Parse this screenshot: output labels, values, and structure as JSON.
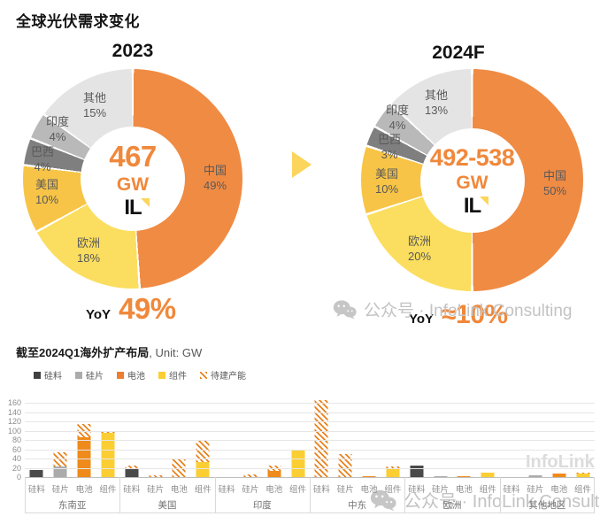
{
  "page_title": "全球光伏需求变化",
  "watermarks": {
    "mid": "公众号 · InfoLink Consulting",
    "bottom": "公众号 · InfoLink Consulting",
    "infolink": "InfoLink"
  },
  "logo_text": "IL",
  "donut_colors": [
    "#F08B44",
    "#FBDE5F",
    "#F7C447",
    "#7F7F7F",
    "#B9B9B9",
    "#E4E4E4"
  ],
  "donuts": [
    {
      "title": "2023",
      "center_value": "467",
      "center_unit": "GW",
      "yoy_label": "YoY",
      "yoy_value": "49%"
    },
    {
      "title": "2024F",
      "center_value": "492-538",
      "center_unit": "GW",
      "yoy_label": "YoY",
      "yoy_value": "≈10%"
    }
  ],
  "bar_section": {
    "title_bold": "截至2024Q1海外扩产布局",
    "title_rest": ", Unit: GW",
    "legend": [
      {
        "label": "硅料",
        "color": "#404040",
        "hatch": false
      },
      {
        "label": "硅片",
        "color": "#ABABAB",
        "hatch": false
      },
      {
        "label": "电池",
        "color": "#ED7D31",
        "hatch": false
      },
      {
        "label": "组件",
        "color": "#FBCE33",
        "hatch": false
      },
      {
        "label": "待建产能",
        "color": "#E8821E",
        "hatch": true
      }
    ],
    "category_colors": {
      "硅料": "#4A4A4A",
      "硅片": "#ABABAB",
      "电池": "#EE8B1B",
      "组件": "#FBCE33"
    }
  },
  "chart_data": [
    {
      "type": "pie",
      "title": "2023",
      "labels": [
        "中国",
        "欧洲",
        "美国",
        "巴西",
        "印度",
        "其他"
      ],
      "values": [
        49,
        18,
        10,
        4,
        4,
        15
      ],
      "unit": "%",
      "center_text": "467 GW",
      "annotation": "YoY 49%",
      "start_angle": "top",
      "direction": "clockwise"
    },
    {
      "type": "pie",
      "title": "2024F",
      "labels": [
        "中国",
        "欧洲",
        "美国",
        "巴西",
        "印度",
        "其他"
      ],
      "values": [
        50,
        20,
        10,
        3,
        4,
        13
      ],
      "unit": "%",
      "center_text": "492-538 GW",
      "annotation": "YoY ≈10%",
      "start_angle": "top",
      "direction": "clockwise"
    },
    {
      "type": "bar",
      "title": "截至2024Q1海外扩产布局, Unit: GW",
      "ylabel": "GW",
      "ylim": [
        0,
        160
      ],
      "ytick_step": 20,
      "stack_note": "each bar = existing (solid, category color) + planned 待建产能 (orange hatch) on top",
      "groups": [
        {
          "name": "东南亚",
          "bars": [
            {
              "cat": "硅料",
              "existing": 15,
              "planned": 0
            },
            {
              "cat": "硅片",
              "existing": 23,
              "planned": 30
            },
            {
              "cat": "电池",
              "existing": 85,
              "planned": 30
            },
            {
              "cat": "组件",
              "existing": 95,
              "planned": 3
            }
          ]
        },
        {
          "name": "美国",
          "bars": [
            {
              "cat": "硅料",
              "existing": 18,
              "planned": 7
            },
            {
              "cat": "硅片",
              "existing": 0,
              "planned": 3
            },
            {
              "cat": "电池",
              "existing": 0,
              "planned": 40
            },
            {
              "cat": "组件",
              "existing": 33,
              "planned": 45
            }
          ]
        },
        {
          "name": "印度",
          "bars": [
            {
              "cat": "硅料",
              "existing": 0,
              "planned": 0
            },
            {
              "cat": "硅片",
              "existing": 0,
              "planned": 5
            },
            {
              "cat": "电池",
              "existing": 13,
              "planned": 12
            },
            {
              "cat": "组件",
              "existing": 60,
              "planned": 0
            }
          ]
        },
        {
          "name": "中东",
          "bars": [
            {
              "cat": "硅料",
              "existing": 0,
              "planned": 165
            },
            {
              "cat": "硅片",
              "existing": 0,
              "planned": 50
            },
            {
              "cat": "电池",
              "existing": 2,
              "planned": 0
            },
            {
              "cat": "组件",
              "existing": 20,
              "planned": 2
            }
          ]
        },
        {
          "name": "欧洲",
          "bars": [
            {
              "cat": "硅料",
              "existing": 25,
              "planned": 0
            },
            {
              "cat": "硅片",
              "existing": 2,
              "planned": 0
            },
            {
              "cat": "电池",
              "existing": 2,
              "planned": 0
            },
            {
              "cat": "组件",
              "existing": 10,
              "planned": 0
            }
          ]
        },
        {
          "name": "其他地区",
          "bars": [
            {
              "cat": "硅料",
              "existing": 0,
              "planned": 0
            },
            {
              "cat": "硅片",
              "existing": 3,
              "planned": 0
            },
            {
              "cat": "电池",
              "existing": 8,
              "planned": 0
            },
            {
              "cat": "组件",
              "existing": 8,
              "planned": 2
            }
          ]
        }
      ]
    }
  ]
}
